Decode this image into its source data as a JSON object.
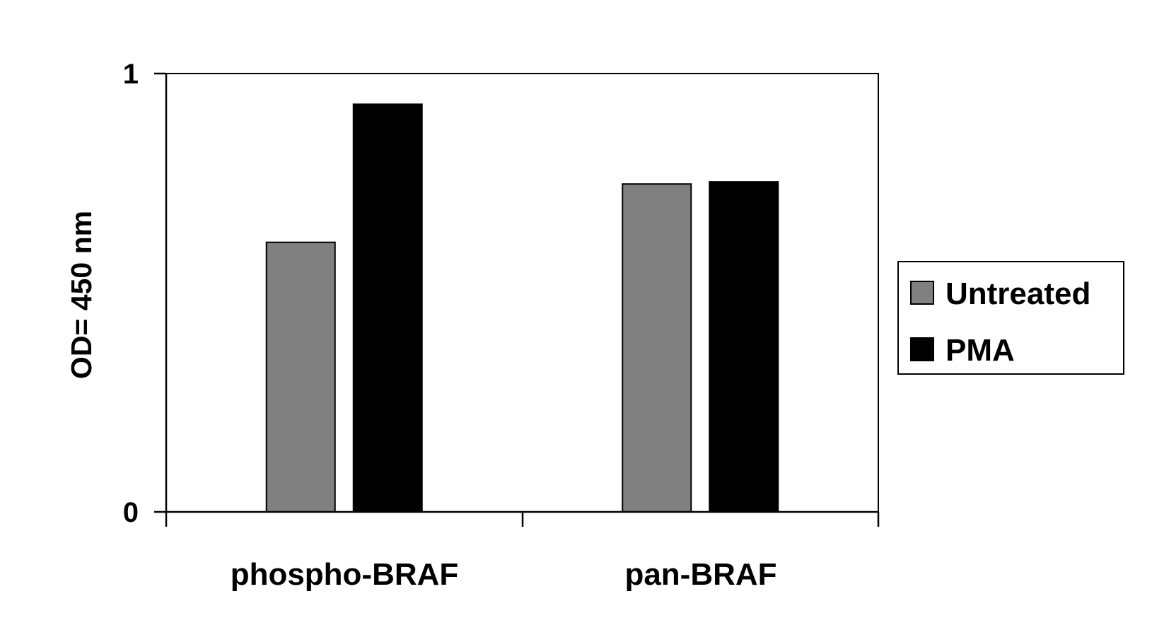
{
  "chart_data": {
    "type": "bar",
    "title": "",
    "xlabel": "",
    "ylabel": "OD= 450 nm",
    "categories": [
      "phospho-BRAF",
      "pan-BRAF"
    ],
    "series": [
      {
        "name": "Untreated",
        "color": "#808080",
        "values": [
          0.615,
          0.748
        ]
      },
      {
        "name": "PMA",
        "color": "#000000",
        "values": [
          0.93,
          0.753
        ]
      }
    ],
    "ylim": [
      0,
      1
    ],
    "yticks": [
      "0",
      "1"
    ],
    "grid": false,
    "legend": "right"
  }
}
